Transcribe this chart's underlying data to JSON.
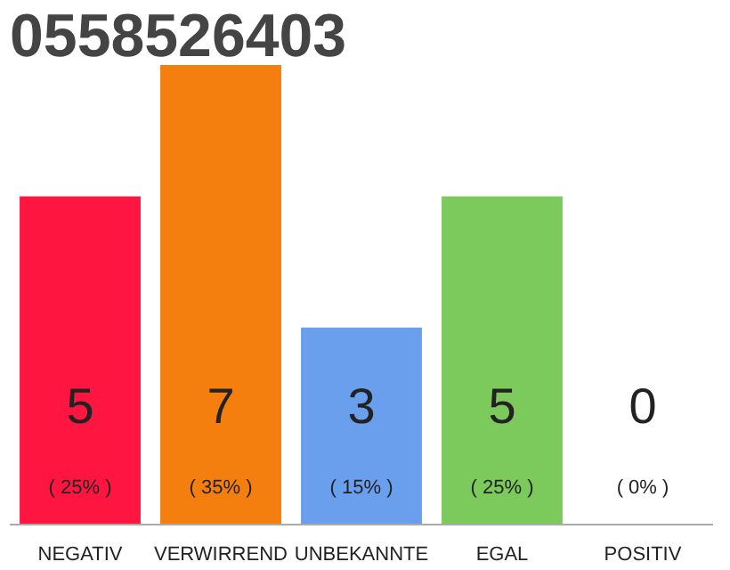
{
  "chart_data": {
    "type": "bar",
    "title": "0558526403",
    "categories": [
      "NEGATIV",
      "VERWIRREND",
      "UNBEKANNTE",
      "EGAL",
      "POSITIV"
    ],
    "values": [
      5,
      7,
      3,
      5,
      0
    ],
    "colors": [
      "#fe1640",
      "#f57f0e",
      "#6a9fee",
      "#7cc95c",
      "#eeeeee"
    ],
    "tick_labels": "x",
    "data_labels": true,
    "annotations": [
      "( 25% )",
      "( 35% )",
      "( 15% )",
      "( 25% )",
      "( 0% )"
    ]
  }
}
